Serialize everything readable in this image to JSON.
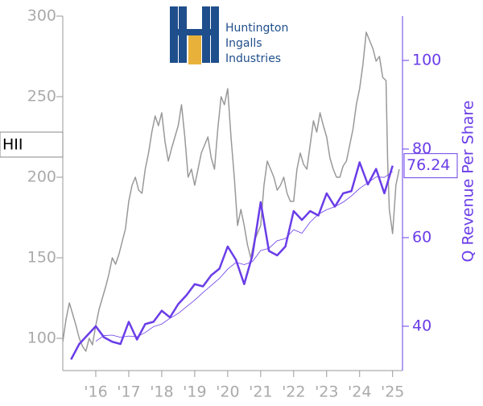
{
  "chart_data": {
    "type": "line",
    "ticker": "HII",
    "logo": {
      "lines": [
        "Huntington",
        "Ingalls",
        "Industries"
      ]
    },
    "y2label": "Q Revenue Per Share",
    "xlim": [
      2015,
      2025.3
    ],
    "xticks": [
      {
        "value": 2016,
        "label": "'16"
      },
      {
        "value": 2017,
        "label": "'17"
      },
      {
        "value": 2018,
        "label": "'18"
      },
      {
        "value": 2019,
        "label": "'19"
      },
      {
        "value": 2020,
        "label": "'20"
      },
      {
        "value": 2021,
        "label": "'21"
      },
      {
        "value": 2022,
        "label": "'22"
      },
      {
        "value": 2023,
        "label": "'23"
      },
      {
        "value": 2024,
        "label": "'24"
      },
      {
        "value": 2025,
        "label": "'25"
      }
    ],
    "ylim": [
      80,
      300
    ],
    "yticks": [
      100,
      150,
      200,
      250,
      300
    ],
    "y2lim": [
      30,
      110
    ],
    "y2ticks": [
      40,
      60,
      80,
      100
    ],
    "series": [
      {
        "color": "#999999",
        "line_width": 1.5,
        "x": [
          2015.0,
          2015.1,
          2015.2,
          2015.3,
          2015.4,
          2015.5,
          2015.6,
          2015.7,
          2015.8,
          2015.9,
          2016.0,
          2016.1,
          2016.2,
          2016.3,
          2016.4,
          2016.5,
          2016.6,
          2016.7,
          2016.8,
          2016.9,
          2017.0,
          2017.1,
          2017.2,
          2017.3,
          2017.4,
          2017.5,
          2017.6,
          2017.7,
          2017.8,
          2017.9,
          2018.0,
          2018.1,
          2018.2,
          2018.3,
          2018.4,
          2018.5,
          2018.6,
          2018.7,
          2018.8,
          2018.9,
          2019.0,
          2019.1,
          2019.2,
          2019.3,
          2019.4,
          2019.5,
          2019.6,
          2019.7,
          2019.8,
          2019.9,
          2020.0,
          2020.1,
          2020.2,
          2020.3,
          2020.4,
          2020.5,
          2020.6,
          2020.7,
          2020.8,
          2020.9,
          2021.0,
          2021.1,
          2021.2,
          2021.3,
          2021.4,
          2021.5,
          2021.6,
          2021.7,
          2021.8,
          2021.9,
          2022.0,
          2022.1,
          2022.2,
          2022.3,
          2022.4,
          2022.5,
          2022.6,
          2022.7,
          2022.8,
          2022.9,
          2023.0,
          2023.1,
          2023.2,
          2023.3,
          2023.4,
          2023.5,
          2023.6,
          2023.7,
          2023.8,
          2023.9,
          2024.0,
          2024.1,
          2024.2,
          2024.3,
          2024.4,
          2024.5,
          2024.6,
          2024.7,
          2024.8,
          2024.85,
          2024.9,
          2025.0,
          2025.1,
          2025.2
        ],
        "values": [
          98,
          112,
          122,
          115,
          108,
          100,
          95,
          92,
          100,
          96,
          108,
          118,
          125,
          132,
          140,
          150,
          146,
          152,
          160,
          168,
          185,
          195,
          200,
          192,
          190,
          205,
          215,
          228,
          238,
          232,
          240,
          222,
          210,
          218,
          225,
          232,
          245,
          225,
          200,
          205,
          195,
          205,
          215,
          220,
          225,
          212,
          205,
          230,
          250,
          245,
          255,
          225,
          200,
          170,
          180,
          170,
          158,
          150,
          160,
          165,
          170,
          195,
          210,
          205,
          200,
          192,
          195,
          200,
          190,
          185,
          185,
          205,
          215,
          208,
          205,
          220,
          235,
          228,
          240,
          232,
          225,
          212,
          205,
          200,
          200,
          207,
          210,
          220,
          230,
          245,
          255,
          270,
          290,
          285,
          280,
          272,
          275,
          262,
          260,
          210,
          180,
          165,
          195,
          205
        ]
      },
      {
        "color": "#6a3de8",
        "axis": "y2",
        "line_width": 2.5,
        "x": [
          2015.25,
          2015.5,
          2015.75,
          2016.0,
          2016.25,
          2016.5,
          2016.75,
          2017.0,
          2017.25,
          2017.5,
          2017.75,
          2018.0,
          2018.25,
          2018.5,
          2018.75,
          2019.0,
          2019.25,
          2019.5,
          2019.75,
          2020.0,
          2020.25,
          2020.5,
          2020.75,
          2021.0,
          2021.25,
          2021.5,
          2021.75,
          2022.0,
          2022.25,
          2022.5,
          2022.75,
          2023.0,
          2023.25,
          2023.5,
          2023.75,
          2024.0,
          2024.25,
          2024.5,
          2024.75,
          2025.0
        ],
        "values": [
          32.5,
          36,
          38,
          40,
          37.5,
          36.5,
          36,
          41,
          37,
          40.5,
          41,
          43.5,
          42,
          45,
          47,
          49.5,
          49,
          51.5,
          53,
          58,
          55,
          49.5,
          56,
          68,
          57,
          56,
          58,
          66,
          64,
          66,
          65,
          70,
          67,
          70,
          70.5,
          77,
          72,
          75.5,
          70,
          76.24
        ]
      },
      {
        "color": "#6a3de8",
        "axis": "y2",
        "line_width": 0.8,
        "x": [
          2016.0,
          2016.25,
          2016.5,
          2016.75,
          2017.0,
          2017.25,
          2017.5,
          2017.75,
          2018.0,
          2018.25,
          2018.5,
          2018.75,
          2019.0,
          2019.25,
          2019.5,
          2019.75,
          2020.0,
          2020.25,
          2020.5,
          2020.75,
          2021.0,
          2021.25,
          2021.5,
          2021.75,
          2022.0,
          2022.25,
          2022.5,
          2022.75,
          2023.0,
          2023.25,
          2023.5,
          2023.75,
          2024.0,
          2024.25,
          2024.5,
          2024.75,
          2025.0
        ],
        "values": [
          36.6,
          37.9,
          38,
          37.5,
          37.8,
          37.6,
          38.6,
          39.9,
          40.5,
          41.8,
          42.9,
          44.4,
          45.9,
          47.6,
          49.2,
          50.8,
          52.9,
          54.4,
          53.9,
          54.6,
          57.1,
          57.6,
          59.3,
          59.8,
          61.8,
          61,
          63.5,
          65.3,
          66.3,
          67,
          68,
          69.4,
          71.1,
          72.4,
          73.7,
          73.6,
          74.9
        ]
      }
    ]
  }
}
